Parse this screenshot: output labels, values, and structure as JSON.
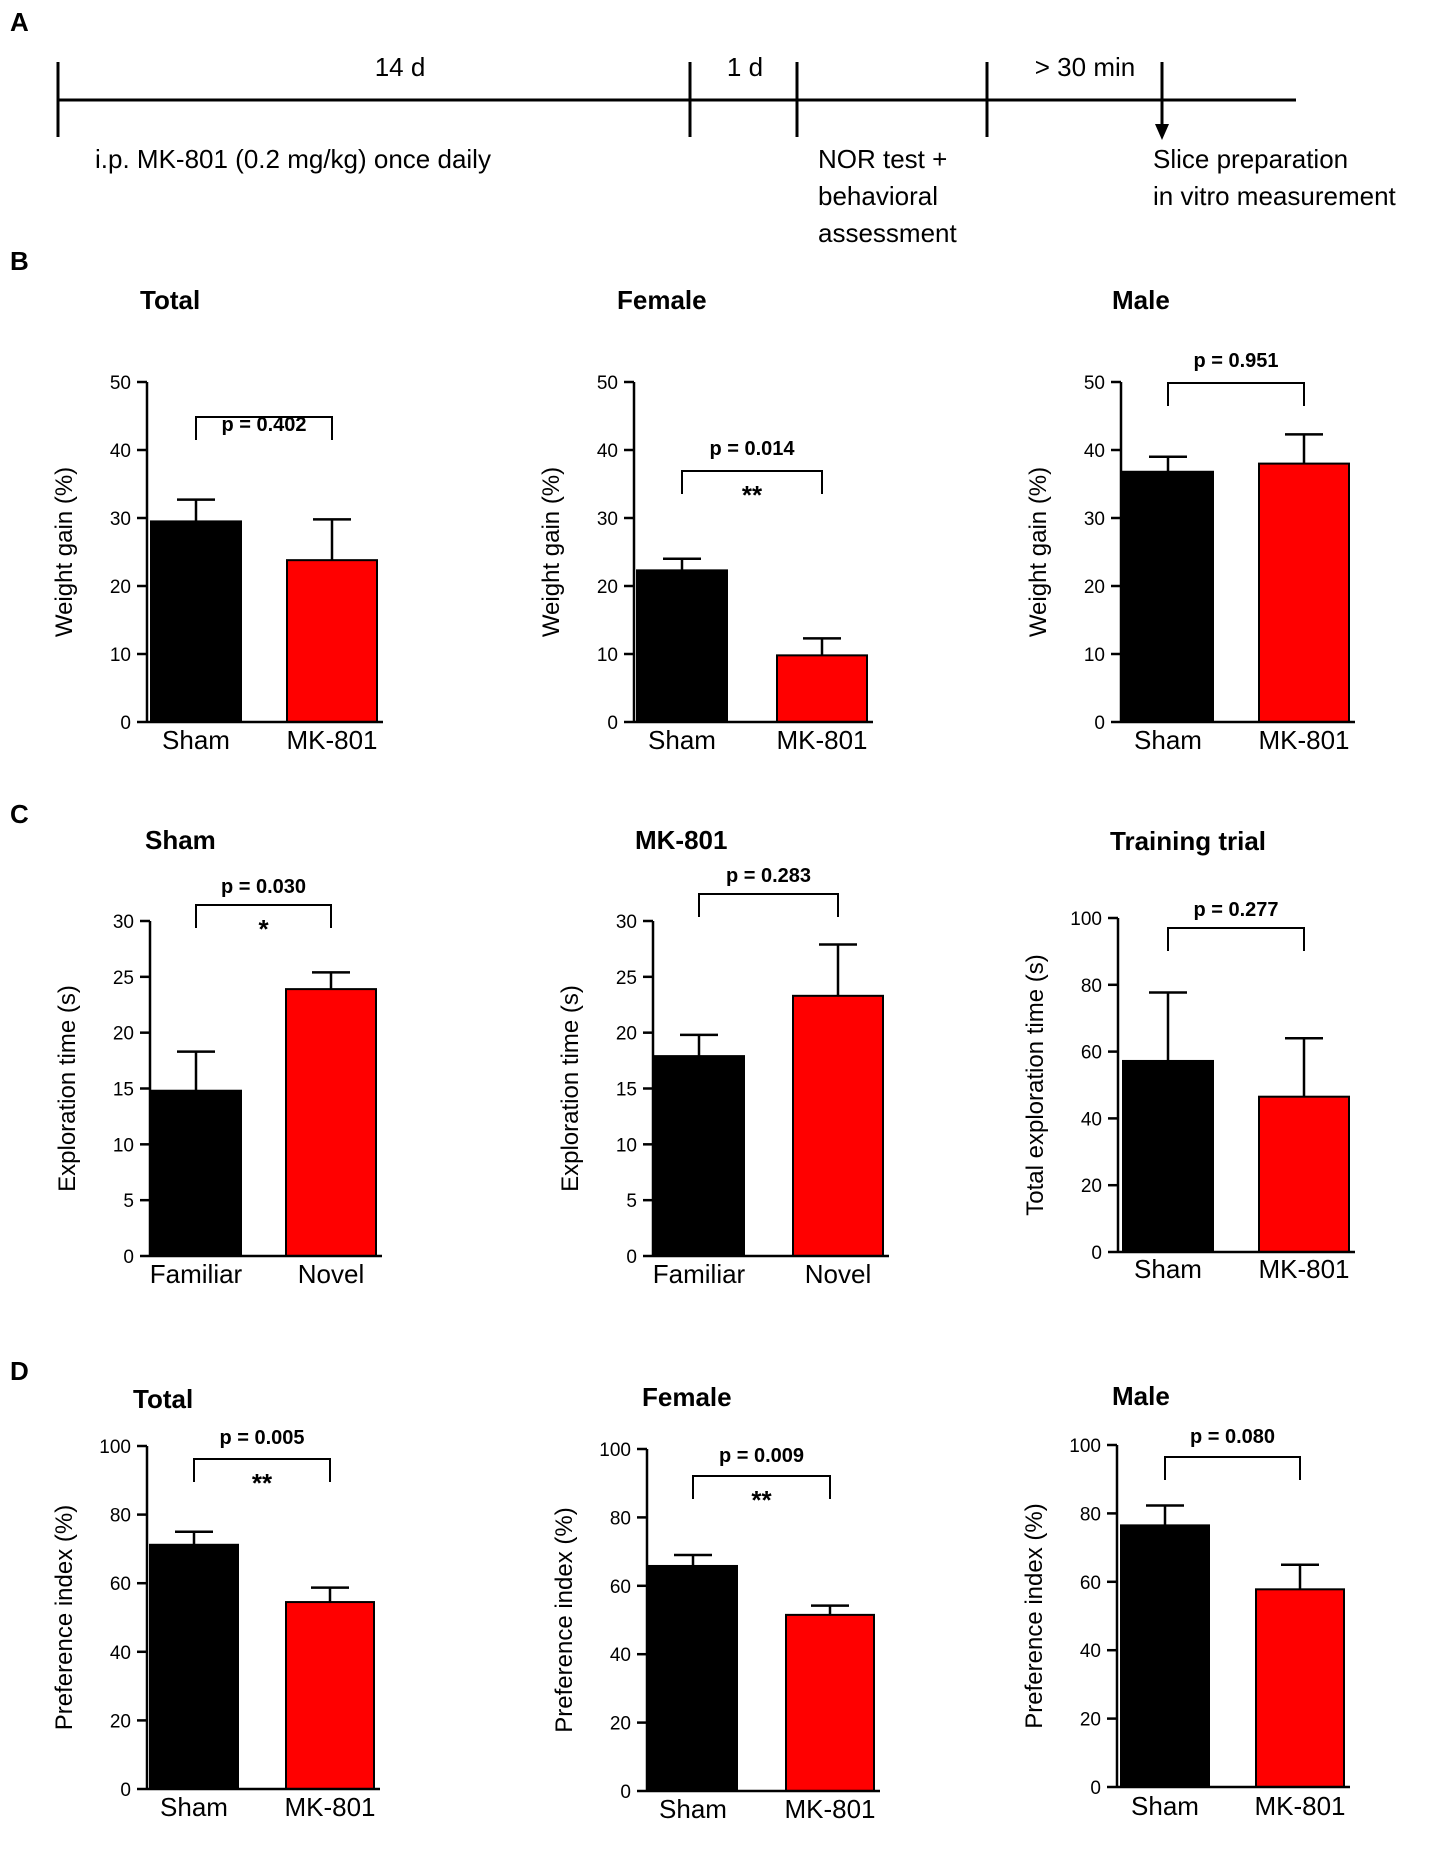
{
  "colors": {
    "sham": "#000000",
    "treatment": "#ff0000",
    "axis": "#000000"
  },
  "panel_labels": [
    "A",
    "B",
    "C",
    "D"
  ],
  "timeline": {
    "segments": [
      "14 d",
      "1 d",
      "> 30 min"
    ],
    "treatment_text": "i.p. MK-801 (0.2 mg/kg) once daily",
    "test_lines": [
      "NOR test +",
      "behavioral",
      "assessment"
    ],
    "end_lines": [
      "Slice preparation",
      "in vitro measurement"
    ]
  },
  "chart_data": [
    {
      "id": "b-total",
      "panel": "B",
      "type": "bar",
      "title": "Total",
      "ylabel": "Weight gain (%)",
      "ylim": [
        0,
        50
      ],
      "yticks": [
        0,
        10,
        20,
        30,
        40,
        50
      ],
      "categories": [
        "Sham",
        "MK-801"
      ],
      "values": [
        29.5,
        23.8
      ],
      "errors": [
        3.2,
        6.0
      ],
      "comparison": {
        "p_text": "p = 0.402",
        "stars": ""
      }
    },
    {
      "id": "b-female",
      "panel": "B",
      "type": "bar",
      "title": "Female",
      "ylabel": "Weight gain (%)",
      "ylim": [
        0,
        50
      ],
      "yticks": [
        0,
        10,
        20,
        30,
        40,
        50
      ],
      "categories": [
        "Sham",
        "MK-801"
      ],
      "values": [
        22.3,
        9.8
      ],
      "errors": [
        1.7,
        2.5
      ],
      "comparison": {
        "p_text": "p = 0.014",
        "stars": "**"
      }
    },
    {
      "id": "b-male",
      "panel": "B",
      "type": "bar",
      "title": "Male",
      "ylabel": "Weight gain (%)",
      "ylim": [
        0,
        50
      ],
      "yticks": [
        0,
        10,
        20,
        30,
        40,
        50
      ],
      "categories": [
        "Sham",
        "MK-801"
      ],
      "values": [
        36.8,
        38.0
      ],
      "errors": [
        2.2,
        4.3
      ],
      "comparison": {
        "p_text": "p = 0.951",
        "stars": ""
      }
    },
    {
      "id": "c-sham",
      "panel": "C",
      "type": "bar",
      "title": "Sham",
      "ylabel": "Exploration time (s)",
      "ylim": [
        0,
        30
      ],
      "yticks": [
        0,
        5,
        10,
        15,
        20,
        25,
        30
      ],
      "categories": [
        "Familiar",
        "Novel"
      ],
      "values": [
        14.8,
        23.9
      ],
      "errors": [
        3.5,
        1.5
      ],
      "comparison": {
        "p_text": "p = 0.030",
        "stars": "*"
      }
    },
    {
      "id": "c-mk801",
      "panel": "C",
      "type": "bar",
      "title": "MK-801",
      "ylabel": "Exploration time (s)",
      "ylim": [
        0,
        30
      ],
      "yticks": [
        0,
        5,
        10,
        15,
        20,
        25,
        30
      ],
      "categories": [
        "Familiar",
        "Novel"
      ],
      "values": [
        17.9,
        23.3
      ],
      "errors": [
        1.9,
        4.6
      ],
      "comparison": {
        "p_text": "p = 0.283",
        "stars": ""
      }
    },
    {
      "id": "c-training",
      "panel": "C",
      "type": "bar",
      "title": "Training trial",
      "ylabel": "Total exploration time (s)",
      "ylim": [
        0,
        100
      ],
      "yticks": [
        0,
        20,
        40,
        60,
        80,
        100
      ],
      "categories": [
        "Sham",
        "MK-801"
      ],
      "values": [
        57.2,
        46.5
      ],
      "errors": [
        20.5,
        17.5
      ],
      "comparison": {
        "p_text": "p = 0.277",
        "stars": ""
      }
    },
    {
      "id": "d-total",
      "panel": "D",
      "type": "bar",
      "title": "Total",
      "ylabel": "Preference index (%)",
      "ylim": [
        0,
        100
      ],
      "yticks": [
        0,
        20,
        40,
        60,
        80,
        100
      ],
      "categories": [
        "Sham",
        "MK-801"
      ],
      "values": [
        71.2,
        54.5
      ],
      "errors": [
        3.8,
        4.2
      ],
      "comparison": {
        "p_text": "p = 0.005",
        "stars": "**"
      }
    },
    {
      "id": "d-female",
      "panel": "D",
      "type": "bar",
      "title": "Female",
      "ylabel": "Preference index (%)",
      "ylim": [
        0,
        100
      ],
      "yticks": [
        0,
        20,
        40,
        60,
        80,
        100
      ],
      "categories": [
        "Sham",
        "MK-801"
      ],
      "values": [
        65.8,
        51.5
      ],
      "errors": [
        3.2,
        2.7
      ],
      "comparison": {
        "p_text": "p = 0.009",
        "stars": "**"
      }
    },
    {
      "id": "d-male",
      "panel": "D",
      "type": "bar",
      "title": "Male",
      "ylabel": "Preference index (%)",
      "ylim": [
        0,
        100
      ],
      "yticks": [
        0,
        20,
        40,
        60,
        80,
        100
      ],
      "categories": [
        "Sham",
        "MK-801"
      ],
      "values": [
        76.5,
        57.8
      ],
      "errors": [
        5.8,
        7.2
      ],
      "comparison": {
        "p_text": "p = 0.080",
        "stars": ""
      }
    }
  ]
}
